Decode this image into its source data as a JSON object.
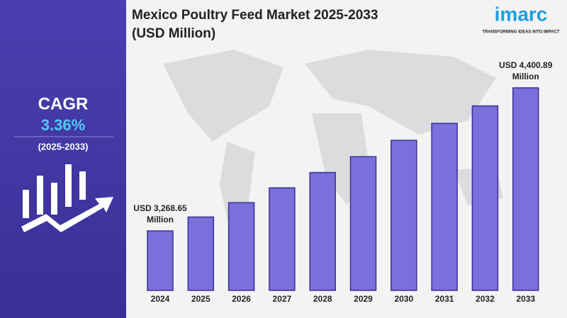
{
  "chart_data": {
    "type": "bar",
    "title": "Mexico Poultry Feed Market 2025-2033 (USD Million)",
    "categories": [
      "2024",
      "2025",
      "2026",
      "2027",
      "2028",
      "2029",
      "2030",
      "2031",
      "2032",
      "2033"
    ],
    "values": [
      3268.65,
      3378.48,
      3492.0,
      3609.33,
      3730.6,
      3855.94,
      3985.5,
      4119.41,
      4257.82,
      4400.89
    ],
    "value_labels": [
      "USD 3,268.65 Million",
      null,
      null,
      null,
      null,
      null,
      null,
      null,
      null,
      "USD 4,400.89 Million"
    ],
    "color": "#7b6fdc"
  },
  "cagr": {
    "label": "CAGR",
    "value": "3.36%",
    "period": "(2025-2033)"
  },
  "logo": {
    "name": "imarc",
    "tagline": "TRANSFORMING IDEAS INTO IMPACT"
  }
}
